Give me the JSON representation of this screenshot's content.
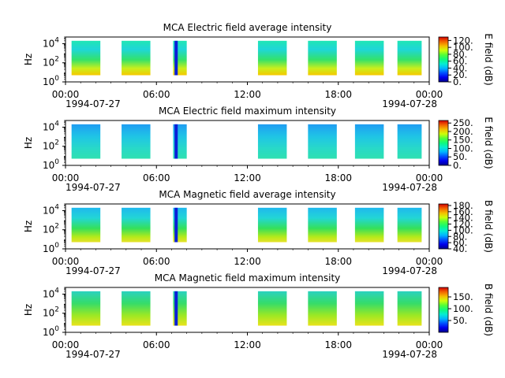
{
  "figure": {
    "date_start": "1994-07-27",
    "date_end": "1994-07-28"
  },
  "chart_data": [
    {
      "type": "heatmap",
      "title": "MCA  Electric field average intensity",
      "ylabel": "Hz",
      "y_scale": "log",
      "ylim": [
        1,
        50000
      ],
      "y_ticks": [
        {
          "value": 1,
          "base": "10",
          "exp": "0"
        },
        {
          "value": 100,
          "base": "10",
          "exp": "2"
        },
        {
          "value": 10000,
          "base": "10",
          "exp": "4"
        }
      ],
      "x_range_hours": [
        0,
        24
      ],
      "x_ticks": [
        "00:00",
        "06:00",
        "12:00",
        "18:00",
        "00:00"
      ],
      "colorbar": {
        "label": "E field (dB)",
        "range": [
          0,
          130
        ],
        "ticks": [
          "0.",
          "20.",
          "40.",
          "60.",
          "80.",
          "100.",
          "120."
        ]
      },
      "data_blocks_hours": [
        [
          0.4,
          2.3
        ],
        [
          3.7,
          5.6
        ],
        [
          7.1,
          8.0
        ],
        [
          12.7,
          14.6
        ],
        [
          16.0,
          17.9
        ],
        [
          19.1,
          21.0
        ],
        [
          21.9,
          23.5
        ]
      ],
      "spike_hour": 7.3
    },
    {
      "type": "heatmap",
      "title": "MCA  Electric field maximum intensity",
      "ylabel": "Hz",
      "y_scale": "log",
      "ylim": [
        1,
        50000
      ],
      "y_ticks": [
        {
          "value": 1,
          "base": "10",
          "exp": "0"
        },
        {
          "value": 100,
          "base": "10",
          "exp": "2"
        },
        {
          "value": 10000,
          "base": "10",
          "exp": "4"
        }
      ],
      "x_range_hours": [
        0,
        24
      ],
      "x_ticks": [
        "00:00",
        "06:00",
        "12:00",
        "18:00",
        "00:00"
      ],
      "colorbar": {
        "label": "E field (dB)",
        "range": [
          0,
          265
        ],
        "ticks": [
          "0.",
          "50.",
          "100.",
          "150.",
          "200.",
          "250."
        ]
      },
      "data_blocks_hours": [
        [
          0.4,
          2.3
        ],
        [
          3.7,
          5.6
        ],
        [
          7.1,
          8.0
        ],
        [
          12.7,
          14.6
        ],
        [
          16.0,
          17.9
        ],
        [
          19.1,
          21.0
        ],
        [
          21.9,
          23.5
        ]
      ],
      "spike_hour": 7.3
    },
    {
      "type": "heatmap",
      "title": "MCA  Magnetic field average intensity",
      "ylabel": "Hz",
      "y_scale": "log",
      "ylim": [
        1,
        50000
      ],
      "y_ticks": [
        {
          "value": 1,
          "base": "10",
          "exp": "0"
        },
        {
          "value": 100,
          "base": "10",
          "exp": "2"
        },
        {
          "value": 10000,
          "base": "10",
          "exp": "4"
        }
      ],
      "x_range_hours": [
        0,
        24
      ],
      "x_ticks": [
        "00:00",
        "06:00",
        "12:00",
        "18:00",
        "00:00"
      ],
      "colorbar": {
        "label": "B field (dB)",
        "range": [
          40,
          185
        ],
        "ticks": [
          "40.",
          "60.",
          "80.",
          "100.",
          "120.",
          "140.",
          "160.",
          "180."
        ]
      },
      "data_blocks_hours": [
        [
          0.4,
          2.3
        ],
        [
          3.7,
          5.6
        ],
        [
          7.1,
          8.0
        ],
        [
          12.7,
          14.6
        ],
        [
          16.0,
          17.9
        ],
        [
          19.1,
          21.0
        ],
        [
          21.9,
          23.5
        ]
      ],
      "spike_hour": 7.3
    },
    {
      "type": "heatmap",
      "title": "MCA  Magnetic field maximum intensity",
      "ylabel": "Hz",
      "y_scale": "log",
      "ylim": [
        1,
        50000
      ],
      "y_ticks": [
        {
          "value": 1,
          "base": "10",
          "exp": "0"
        },
        {
          "value": 100,
          "base": "10",
          "exp": "2"
        },
        {
          "value": 10000,
          "base": "10",
          "exp": "4"
        }
      ],
      "x_range_hours": [
        0,
        24
      ],
      "x_ticks": [
        "00:00",
        "06:00",
        "12:00",
        "18:00",
        "00:00"
      ],
      "colorbar": {
        "label": "B field (dB)",
        "range": [
          0,
          190
        ],
        "ticks": [
          "50.",
          "100.",
          "150."
        ]
      },
      "data_blocks_hours": [
        [
          0.4,
          2.3
        ],
        [
          3.7,
          5.6
        ],
        [
          7.1,
          8.0
        ],
        [
          12.7,
          14.6
        ],
        [
          16.0,
          17.9
        ],
        [
          19.1,
          21.0
        ],
        [
          21.9,
          23.5
        ]
      ],
      "spike_hour": 7.3
    }
  ]
}
